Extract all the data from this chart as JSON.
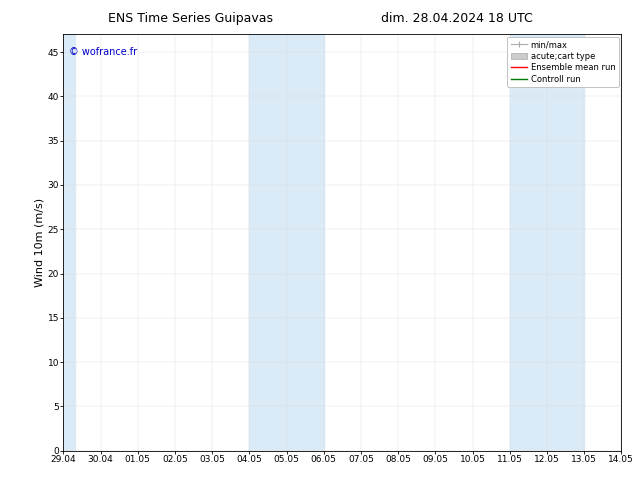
{
  "title_left": "ENS Time Series Guipavas",
  "title_right": "dim. 28.04.2024 18 UTC",
  "ylabel": "Wind 10m (m/s)",
  "ylim": [
    0,
    47
  ],
  "yticks": [
    0,
    5,
    10,
    15,
    20,
    25,
    30,
    35,
    40,
    45
  ],
  "xtick_labels": [
    "29.04",
    "30.04",
    "01.05",
    "02.05",
    "03.05",
    "04.05",
    "05.05",
    "06.05",
    "07.05",
    "08.05",
    "09.05",
    "10.05",
    "11.05",
    "12.05",
    "13.05",
    "14.05"
  ],
  "num_days": 15,
  "shaded_bands": [
    {
      "xstart": 0,
      "xend": 0.3
    },
    {
      "xstart": 5,
      "xend": 7
    },
    {
      "xstart": 12,
      "xend": 14
    }
  ],
  "shade_color": "#daeaf7",
  "watermark": "© wofrance.fr",
  "watermark_color": "#0000cc",
  "legend_labels": [
    "min/max",
    "acute;cart type",
    "Ensemble mean run",
    "Controll run"
  ],
  "legend_colors": [
    "#999999",
    "#cccccc",
    "#ff0000",
    "#007700"
  ],
  "bg_color": "#ffffff",
  "title_fontsize": 9,
  "tick_fontsize": 6.5,
  "ylabel_fontsize": 8,
  "legend_fontsize": 6,
  "watermark_fontsize": 7
}
